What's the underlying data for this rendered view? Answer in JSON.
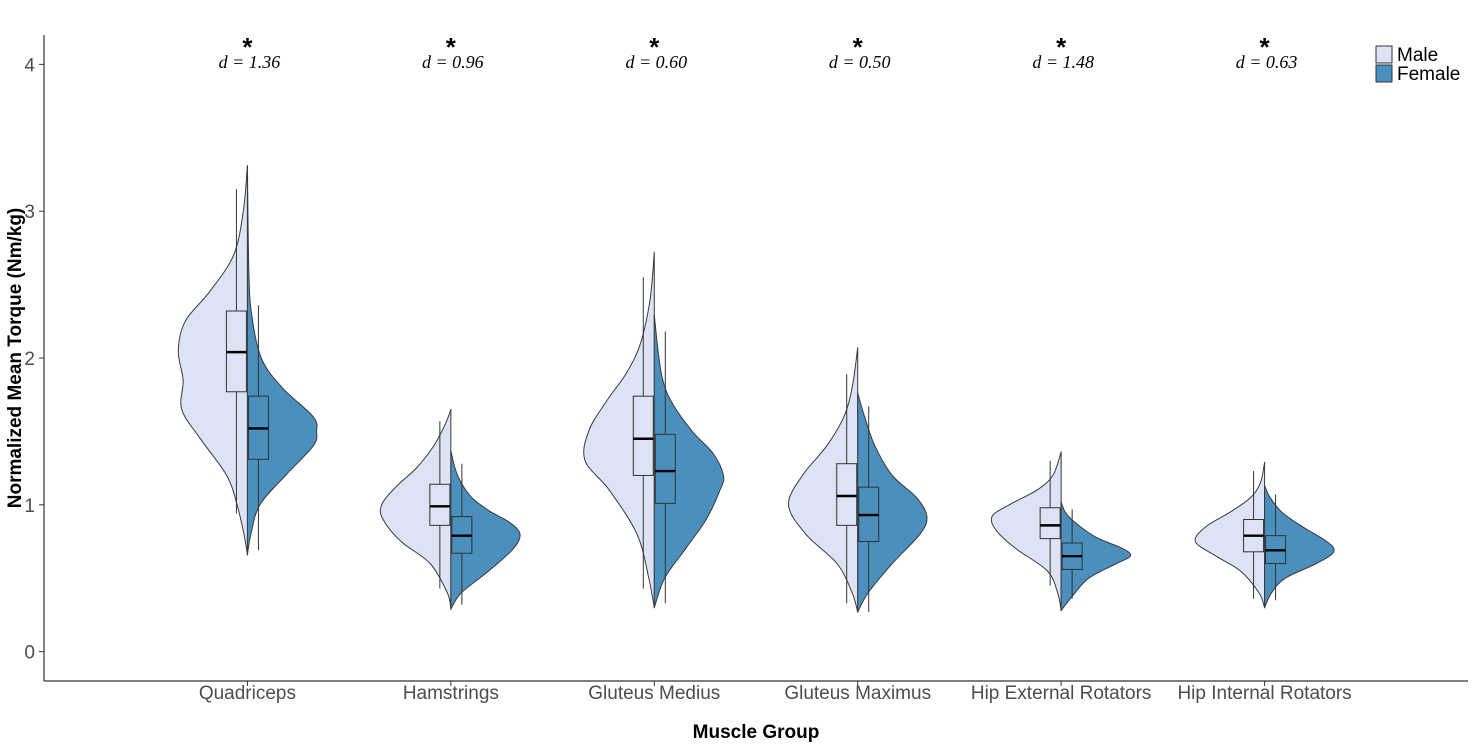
{
  "chart_data": {
    "type": "split-violin-boxplot",
    "title": "",
    "xlabel": "Muscle Group",
    "ylabel": "Normalized Mean Torque (Nm/kg)",
    "ylim": [
      -0.2,
      4.2
    ],
    "yticks": [
      0,
      1,
      2,
      3,
      4
    ],
    "grid": false,
    "legend": {
      "position": "top-right",
      "entries": [
        {
          "name": "Male",
          "color": "#dde3f4"
        },
        {
          "name": "Female",
          "color": "#4a8fbd"
        }
      ]
    },
    "categories": [
      "Quadriceps",
      "Hamstrings",
      "Gluteus Medius",
      "Gluteus Maximus",
      "Hip External Rotators",
      "Hip Internal Rotators"
    ],
    "significance": [
      "*",
      "*",
      "*",
      "*",
      "*",
      "*"
    ],
    "effect_sizes": [
      "d = 1.36",
      "d = 0.96",
      "d = 0.60",
      "d = 0.50",
      "d = 1.48",
      "d = 0.63"
    ],
    "series": [
      {
        "name": "Male",
        "color": "#dde3f4",
        "boxes": [
          {
            "whisker_low": 0.94,
            "q1": 1.77,
            "median": 2.04,
            "q3": 2.32,
            "whisker_high": 3.15
          },
          {
            "whisker_low": 0.43,
            "q1": 0.86,
            "median": 0.99,
            "q3": 1.14,
            "whisker_high": 1.57
          },
          {
            "whisker_low": 0.43,
            "q1": 1.2,
            "median": 1.45,
            "q3": 1.74,
            "whisker_high": 2.55
          },
          {
            "whisker_low": 0.33,
            "q1": 0.86,
            "median": 1.06,
            "q3": 1.28,
            "whisker_high": 1.89
          },
          {
            "whisker_low": 0.45,
            "q1": 0.77,
            "median": 0.86,
            "q3": 0.98,
            "whisker_high": 1.3
          },
          {
            "whisker_low": 0.36,
            "q1": 0.68,
            "median": 0.79,
            "q3": 0.9,
            "whisker_high": 1.23
          }
        ],
        "density": [
          {
            "min": 0.66,
            "max": 3.31,
            "profile": [
              [
                0.66,
                0
              ],
              [
                0.8,
                0.05
              ],
              [
                1.0,
                0.15
              ],
              [
                1.2,
                0.3
              ],
              [
                1.45,
                0.68
              ],
              [
                1.65,
                0.95
              ],
              [
                1.85,
                0.93
              ],
              [
                2.05,
                1.0
              ],
              [
                2.25,
                0.9
              ],
              [
                2.45,
                0.55
              ],
              [
                2.7,
                0.2
              ],
              [
                3.0,
                0.06
              ],
              [
                3.31,
                0
              ]
            ]
          },
          {
            "min": 0.29,
            "max": 1.65,
            "profile": [
              [
                0.29,
                0
              ],
              [
                0.4,
                0.05
              ],
              [
                0.6,
                0.3
              ],
              [
                0.75,
                0.72
              ],
              [
                0.9,
                0.98
              ],
              [
                1.0,
                1.0
              ],
              [
                1.12,
                0.8
              ],
              [
                1.25,
                0.5
              ],
              [
                1.4,
                0.25
              ],
              [
                1.55,
                0.08
              ],
              [
                1.65,
                0
              ]
            ]
          },
          {
            "min": 0.3,
            "max": 2.72,
            "profile": [
              [
                0.3,
                0
              ],
              [
                0.5,
                0.08
              ],
              [
                0.8,
                0.25
              ],
              [
                1.1,
                0.65
              ],
              [
                1.3,
                1.0
              ],
              [
                1.5,
                0.95
              ],
              [
                1.7,
                0.7
              ],
              [
                1.9,
                0.4
              ],
              [
                2.1,
                0.2
              ],
              [
                2.4,
                0.06
              ],
              [
                2.72,
                0
              ]
            ]
          },
          {
            "min": 0.27,
            "max": 2.07,
            "profile": [
              [
                0.27,
                0
              ],
              [
                0.4,
                0.08
              ],
              [
                0.6,
                0.3
              ],
              [
                0.8,
                0.75
              ],
              [
                1.0,
                1.0
              ],
              [
                1.2,
                0.8
              ],
              [
                1.4,
                0.45
              ],
              [
                1.6,
                0.2
              ],
              [
                1.8,
                0.08
              ],
              [
                2.07,
                0
              ]
            ]
          },
          {
            "min": 0.28,
            "max": 1.36,
            "profile": [
              [
                0.28,
                0
              ],
              [
                0.4,
                0.05
              ],
              [
                0.55,
                0.2
              ],
              [
                0.7,
                0.65
              ],
              [
                0.82,
                0.93
              ],
              [
                0.92,
                1.0
              ],
              [
                1.0,
                0.75
              ],
              [
                1.1,
                0.35
              ],
              [
                1.2,
                0.12
              ],
              [
                1.36,
                0
              ]
            ]
          },
          {
            "min": 0.3,
            "max": 1.29,
            "profile": [
              [
                0.3,
                0
              ],
              [
                0.4,
                0.08
              ],
              [
                0.55,
                0.35
              ],
              [
                0.65,
                0.7
              ],
              [
                0.75,
                1.0
              ],
              [
                0.85,
                0.85
              ],
              [
                0.95,
                0.5
              ],
              [
                1.05,
                0.2
              ],
              [
                1.15,
                0.06
              ],
              [
                1.29,
                0
              ]
            ]
          }
        ]
      },
      {
        "name": "Female",
        "color": "#4a8fbd",
        "boxes": [
          {
            "whisker_low": 0.69,
            "q1": 1.31,
            "median": 1.52,
            "q3": 1.74,
            "whisker_high": 2.36
          },
          {
            "whisker_low": 0.32,
            "q1": 0.67,
            "median": 0.79,
            "q3": 0.92,
            "whisker_high": 1.28
          },
          {
            "whisker_low": 0.33,
            "q1": 1.01,
            "median": 1.23,
            "q3": 1.48,
            "whisker_high": 2.18
          },
          {
            "whisker_low": 0.27,
            "q1": 0.75,
            "median": 0.93,
            "q3": 1.12,
            "whisker_high": 1.67
          },
          {
            "whisker_low": 0.36,
            "q1": 0.56,
            "median": 0.65,
            "q3": 0.74,
            "whisker_high": 0.97
          },
          {
            "whisker_low": 0.35,
            "q1": 0.6,
            "median": 0.69,
            "q3": 0.79,
            "whisker_high": 1.07
          }
        ],
        "density": [
          {
            "min": 0.66,
            "max": 3.31,
            "profile": [
              [
                0.66,
                0
              ],
              [
                0.8,
                0.05
              ],
              [
                1.0,
                0.18
              ],
              [
                1.2,
                0.55
              ],
              [
                1.4,
                0.95
              ],
              [
                1.5,
                1.0
              ],
              [
                1.6,
                0.95
              ],
              [
                1.8,
                0.5
              ],
              [
                2.0,
                0.2
              ],
              [
                2.3,
                0.06
              ],
              [
                2.6,
                0.02
              ],
              [
                3.31,
                0
              ]
            ]
          },
          {
            "min": 0.29,
            "max": 1.37,
            "profile": [
              [
                0.29,
                0
              ],
              [
                0.4,
                0.15
              ],
              [
                0.55,
                0.55
              ],
              [
                0.7,
                0.9
              ],
              [
                0.8,
                1.0
              ],
              [
                0.88,
                0.85
              ],
              [
                0.96,
                0.55
              ],
              [
                1.05,
                0.3
              ],
              [
                1.15,
                0.15
              ],
              [
                1.25,
                0.06
              ],
              [
                1.37,
                0
              ]
            ]
          },
          {
            "min": 0.3,
            "max": 2.29,
            "profile": [
              [
                0.3,
                0
              ],
              [
                0.5,
                0.15
              ],
              [
                0.7,
                0.45
              ],
              [
                0.9,
                0.75
              ],
              [
                1.1,
                0.95
              ],
              [
                1.2,
                1.0
              ],
              [
                1.35,
                0.85
              ],
              [
                1.5,
                0.55
              ],
              [
                1.7,
                0.25
              ],
              [
                1.9,
                0.1
              ],
              [
                2.29,
                0
              ]
            ]
          },
          {
            "min": 0.27,
            "max": 1.76,
            "profile": [
              [
                0.27,
                0
              ],
              [
                0.4,
                0.15
              ],
              [
                0.6,
                0.5
              ],
              [
                0.8,
                0.9
              ],
              [
                0.92,
                1.0
              ],
              [
                1.05,
                0.85
              ],
              [
                1.2,
                0.5
              ],
              [
                1.4,
                0.25
              ],
              [
                1.6,
                0.1
              ],
              [
                1.76,
                0
              ]
            ]
          },
          {
            "min": 0.28,
            "max": 1.02,
            "profile": [
              [
                0.28,
                0
              ],
              [
                0.4,
                0.2
              ],
              [
                0.5,
                0.4
              ],
              [
                0.6,
                0.8
              ],
              [
                0.65,
                1.0
              ],
              [
                0.7,
                0.9
              ],
              [
                0.78,
                0.5
              ],
              [
                0.88,
                0.2
              ],
              [
                0.95,
                0.06
              ],
              [
                1.02,
                0
              ]
            ]
          },
          {
            "min": 0.3,
            "max": 1.13,
            "profile": [
              [
                0.3,
                0
              ],
              [
                0.4,
                0.1
              ],
              [
                0.5,
                0.3
              ],
              [
                0.6,
                0.75
              ],
              [
                0.68,
                1.0
              ],
              [
                0.75,
                0.9
              ],
              [
                0.85,
                0.55
              ],
              [
                0.95,
                0.25
              ],
              [
                1.05,
                0.08
              ],
              [
                1.13,
                0
              ]
            ]
          }
        ]
      }
    ]
  }
}
